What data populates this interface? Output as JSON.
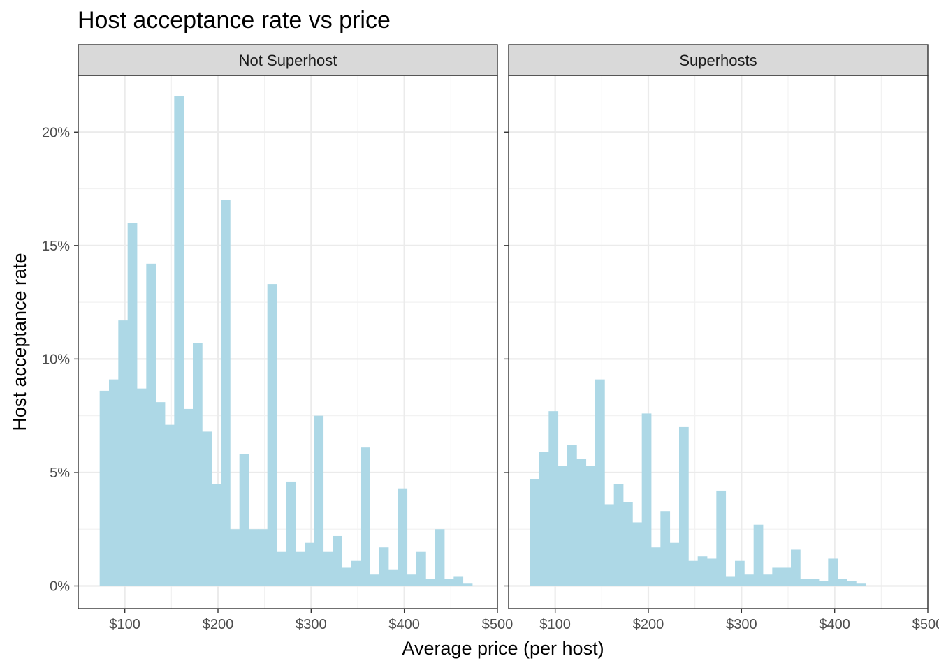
{
  "chart_data": {
    "type": "bar",
    "title": "Host acceptance rate vs price",
    "xlabel": "Average price (per host)",
    "ylabel": "Host acceptance rate",
    "xlim": [
      50,
      500
    ],
    "ylim": [
      -1.0,
      22.5
    ],
    "x_ticks": [
      100,
      200,
      300,
      400,
      500
    ],
    "x_tick_labels": [
      "$100",
      "$200",
      "$300",
      "$400",
      "$500"
    ],
    "y_ticks": [
      0,
      5,
      10,
      15,
      20
    ],
    "y_tick_labels": [
      "0%",
      "5%",
      "10%",
      "15%",
      "20%"
    ],
    "bin_width": 10,
    "bar_color": "#add8e6",
    "grid": true,
    "legend": "none",
    "panels": [
      {
        "name": "Not Superhost",
        "bins": [
          {
            "x": 70,
            "y": 8.6
          },
          {
            "x": 80,
            "y": 9.1
          },
          {
            "x": 90,
            "y": 11.7
          },
          {
            "x": 100,
            "y": 16.0
          },
          {
            "x": 110,
            "y": 8.7
          },
          {
            "x": 120,
            "y": 14.2
          },
          {
            "x": 130,
            "y": 8.1
          },
          {
            "x": 140,
            "y": 7.1
          },
          {
            "x": 150,
            "y": 21.6
          },
          {
            "x": 160,
            "y": 7.8
          },
          {
            "x": 170,
            "y": 10.7
          },
          {
            "x": 180,
            "y": 6.8
          },
          {
            "x": 190,
            "y": 4.5
          },
          {
            "x": 200,
            "y": 17.0
          },
          {
            "x": 210,
            "y": 2.5
          },
          {
            "x": 220,
            "y": 5.8
          },
          {
            "x": 230,
            "y": 2.5
          },
          {
            "x": 240,
            "y": 2.5
          },
          {
            "x": 250,
            "y": 13.3
          },
          {
            "x": 260,
            "y": 1.5
          },
          {
            "x": 270,
            "y": 4.6
          },
          {
            "x": 280,
            "y": 1.5
          },
          {
            "x": 290,
            "y": 1.9
          },
          {
            "x": 300,
            "y": 7.5
          },
          {
            "x": 310,
            "y": 1.5
          },
          {
            "x": 320,
            "y": 2.2
          },
          {
            "x": 330,
            "y": 0.8
          },
          {
            "x": 340,
            "y": 1.1
          },
          {
            "x": 350,
            "y": 6.1
          },
          {
            "x": 360,
            "y": 0.5
          },
          {
            "x": 370,
            "y": 1.7
          },
          {
            "x": 380,
            "y": 0.7
          },
          {
            "x": 390,
            "y": 4.3
          },
          {
            "x": 400,
            "y": 0.5
          },
          {
            "x": 410,
            "y": 1.5
          },
          {
            "x": 420,
            "y": 0.3
          },
          {
            "x": 430,
            "y": 2.5
          },
          {
            "x": 440,
            "y": 0.3
          },
          {
            "x": 450,
            "y": 0.4
          },
          {
            "x": 460,
            "y": 0.1
          }
        ]
      },
      {
        "name": "Superhosts",
        "bins": [
          {
            "x": 70,
            "y": 4.7
          },
          {
            "x": 80,
            "y": 5.9
          },
          {
            "x": 90,
            "y": 7.7
          },
          {
            "x": 100,
            "y": 5.3
          },
          {
            "x": 110,
            "y": 6.2
          },
          {
            "x": 120,
            "y": 5.6
          },
          {
            "x": 130,
            "y": 5.3
          },
          {
            "x": 140,
            "y": 9.1
          },
          {
            "x": 150,
            "y": 3.6
          },
          {
            "x": 160,
            "y": 4.5
          },
          {
            "x": 170,
            "y": 3.7
          },
          {
            "x": 180,
            "y": 2.8
          },
          {
            "x": 190,
            "y": 7.6
          },
          {
            "x": 200,
            "y": 1.7
          },
          {
            "x": 210,
            "y": 3.3
          },
          {
            "x": 220,
            "y": 1.9
          },
          {
            "x": 230,
            "y": 7.0
          },
          {
            "x": 240,
            "y": 1.1
          },
          {
            "x": 250,
            "y": 1.3
          },
          {
            "x": 260,
            "y": 1.2
          },
          {
            "x": 270,
            "y": 4.2
          },
          {
            "x": 280,
            "y": 0.4
          },
          {
            "x": 290,
            "y": 1.1
          },
          {
            "x": 300,
            "y": 0.5
          },
          {
            "x": 310,
            "y": 2.7
          },
          {
            "x": 320,
            "y": 0.5
          },
          {
            "x": 330,
            "y": 0.8
          },
          {
            "x": 340,
            "y": 0.8
          },
          {
            "x": 350,
            "y": 1.6
          },
          {
            "x": 360,
            "y": 0.3
          },
          {
            "x": 370,
            "y": 0.3
          },
          {
            "x": 380,
            "y": 0.2
          },
          {
            "x": 390,
            "y": 1.2
          },
          {
            "x": 400,
            "y": 0.3
          },
          {
            "x": 410,
            "y": 0.2
          },
          {
            "x": 420,
            "y": 0.1
          }
        ]
      }
    ]
  }
}
